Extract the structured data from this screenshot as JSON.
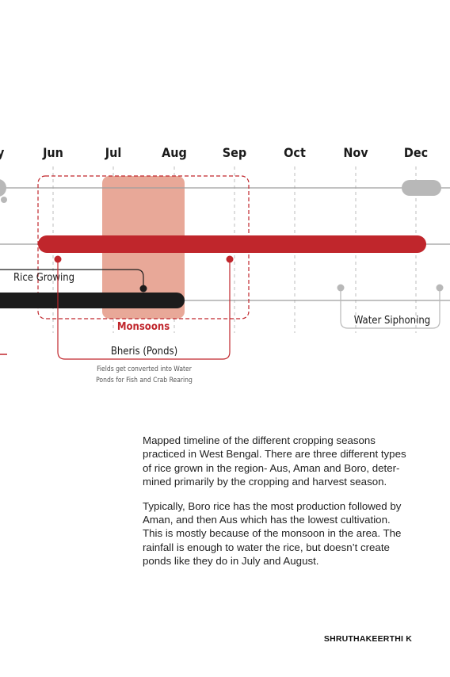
{
  "timeline": {
    "months": [
      "y",
      "Jun",
      "Jul",
      "Aug",
      "Sep",
      "Oct",
      "Nov",
      "Dec"
    ],
    "labels": {
      "rice_growing": "Rice Growing",
      "monsoons": "Monsoons",
      "bheris": "Bheris (Ponds)",
      "bheris_note_line1": "Fields get converted into Water",
      "bheris_note_line2": "Ponds for Fish and Crab Rearing",
      "water_siphoning": "Water Siphoning"
    },
    "colors": {
      "red": "#c0262c",
      "monsoon_fill": "#e8a898",
      "dark": "#1c1c1c",
      "grey": "#b8b8b8"
    }
  },
  "description": {
    "paragraph1": "Mapped timeline of the different cropping seasons practiced in West Bengal. There are three different types of rice grown in the region- Aus, Aman and Boro, deter-mined primarily by the cropping and harvest season.",
    "paragraph2": "Typically, Boro rice has the most production followed by Aman, and then Aus which has the lowest cultivation. This is mostly because of the monsoon in the area. The rainfall is enough to water the rice, but doesn’t create ponds like they do in July and August."
  },
  "author": "SHRUTHAKEERTHI K"
}
